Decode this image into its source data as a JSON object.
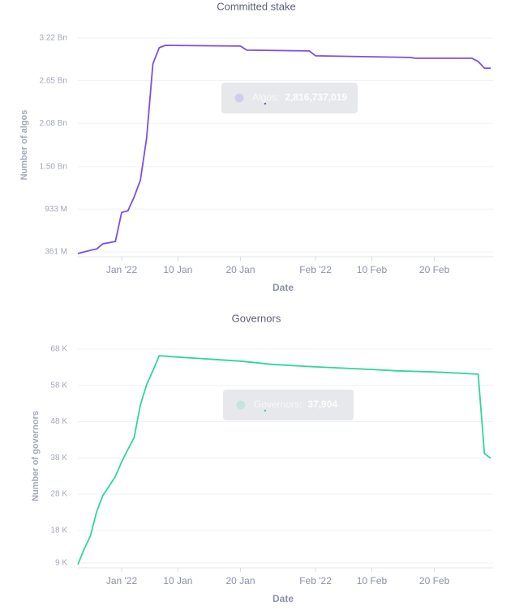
{
  "chart_data": [
    {
      "type": "line",
      "title": "Committed stake",
      "ylabel": "Number of algos",
      "xlabel": "Date",
      "x": [
        "2021-12-25",
        "2021-12-27",
        "2021-12-28",
        "2021-12-29",
        "2021-12-31",
        "2022-01-01",
        "2022-01-02",
        "2022-01-03",
        "2022-01-04",
        "2022-01-05",
        "2022-01-06",
        "2022-01-07",
        "2022-01-08",
        "2022-01-20",
        "2022-01-21",
        "2022-01-31",
        "2022-02-01",
        "2022-02-16",
        "2022-02-17",
        "2022-02-26",
        "2022-02-27",
        "2022-02-28",
        "2022-03-01"
      ],
      "series": [
        {
          "name": "Algos:",
          "color": "#7c4ee4",
          "values": [
            339000000,
            383000000,
            400000000,
            469000000,
            501000000,
            890000000,
            911000000,
            1095000000,
            1321000000,
            1882000000,
            2875000000,
            3091000000,
            3123000000,
            3113000000,
            3059000000,
            3048000000,
            2983000000,
            2961000000,
            2950000000,
            2950000000,
            2907000000,
            2816737019,
            2816737019
          ]
        }
      ],
      "xlim": [
        "2021-12-25",
        "2022-03-01"
      ],
      "xticks": [
        {
          "value": "2022-01-01",
          "label": "Jan '22"
        },
        {
          "value": "2022-01-10",
          "label": "10 Jan"
        },
        {
          "value": "2022-01-20",
          "label": "20 Jan"
        },
        {
          "value": "2022-02-01",
          "label": "Feb '22"
        },
        {
          "value": "2022-02-10",
          "label": "10 Feb"
        },
        {
          "value": "2022-02-20",
          "label": "20 Feb"
        }
      ],
      "ylim": [
        296000000,
        3285000000
      ],
      "yticks": [
        {
          "value": 361000000,
          "label": "361 M"
        },
        {
          "value": 933000000,
          "label": "933 M"
        },
        {
          "value": 1500000000,
          "label": "1.50 Bn"
        },
        {
          "value": 2080000000,
          "label": "2.08 Bn"
        },
        {
          "value": 2650000000,
          "label": "2.65 Bn"
        },
        {
          "value": 3220000000,
          "label": "3.22 Bn"
        }
      ],
      "grid": true,
      "tooltip": {
        "label": "Algos:",
        "value": "2,816,737,019"
      }
    },
    {
      "type": "line",
      "title": "Governors",
      "ylabel": "Number of governors",
      "xlabel": "Date",
      "x": [
        "2021-12-25",
        "2021-12-26",
        "2021-12-27",
        "2021-12-28",
        "2021-12-29",
        "2021-12-30",
        "2021-12-31",
        "2022-01-01",
        "2022-01-02",
        "2022-01-03",
        "2022-01-04",
        "2022-01-05",
        "2022-01-06",
        "2022-01-07",
        "2022-01-10",
        "2022-01-20",
        "2022-01-25",
        "2022-02-01",
        "2022-02-10",
        "2022-02-14",
        "2022-02-20",
        "2022-02-27",
        "2022-02-28",
        "2022-03-01"
      ],
      "series": [
        {
          "name": "Governors:",
          "color": "#2fd69b",
          "values": [
            8600,
            12800,
            16400,
            23100,
            27600,
            30200,
            32900,
            36900,
            40300,
            43600,
            52600,
            58200,
            62000,
            66200,
            65800,
            64700,
            63800,
            63100,
            62400,
            62000,
            61700,
            61100,
            39200,
            37904
          ]
        }
      ],
      "xlim": [
        "2021-12-25",
        "2022-03-01"
      ],
      "xticks": [
        {
          "value": "2022-01-01",
          "label": "Jan '22"
        },
        {
          "value": "2022-01-10",
          "label": "10 Jan"
        },
        {
          "value": "2022-01-20",
          "label": "20 Jan"
        },
        {
          "value": "2022-02-01",
          "label": "Feb '22"
        },
        {
          "value": "2022-02-10",
          "label": "10 Feb"
        },
        {
          "value": "2022-02-20",
          "label": "20 Feb"
        }
      ],
      "ylim": [
        7660,
        69340
      ],
      "yticks": [
        {
          "value": 9000,
          "label": "9 K"
        },
        {
          "value": 18000,
          "label": "18 K"
        },
        {
          "value": 28000,
          "label": "28 K"
        },
        {
          "value": 38000,
          "label": "38 K"
        },
        {
          "value": 48000,
          "label": "48 K"
        },
        {
          "value": 58000,
          "label": "58 K"
        },
        {
          "value": 68000,
          "label": "68 K"
        }
      ],
      "grid": true,
      "tooltip": {
        "label": "Governors:",
        "value": "37,904"
      }
    }
  ]
}
